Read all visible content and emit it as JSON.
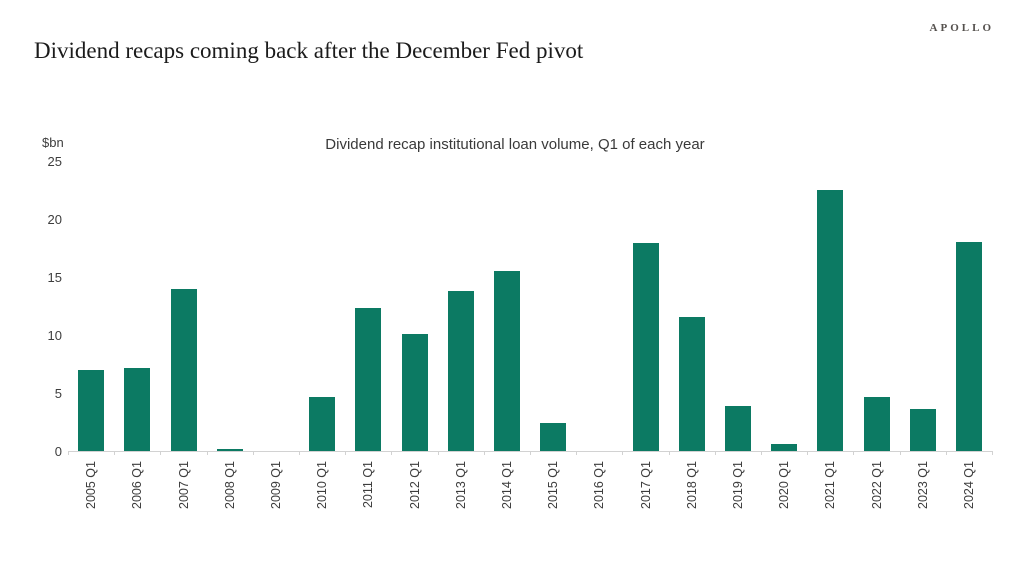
{
  "logo": "APOLLO",
  "title": "Dividend recaps coming back after the December Fed pivot",
  "chart_data": {
    "type": "bar",
    "title": "Dividend recap institutional loan volume, Q1 of each year",
    "unit_label": "$bn",
    "xlabel": "",
    "ylabel": "$bn",
    "categories": [
      "2005 Q1",
      "2006 Q1",
      "2007 Q1",
      "2008 Q1",
      "2009 Q1",
      "2010 Q1",
      "2011 Q1",
      "2012 Q1",
      "2013 Q1",
      "2014 Q1",
      "2015 Q1",
      "2016 Q1",
      "2017 Q1",
      "2018 Q1",
      "2019 Q1",
      "2020 Q1",
      "2021 Q1",
      "2022 Q1",
      "2023 Q1",
      "2024 Q1"
    ],
    "values": [
      7.0,
      7.2,
      14.0,
      0.2,
      0,
      4.7,
      12.4,
      10.1,
      13.8,
      15.6,
      2.4,
      0,
      18.0,
      11.6,
      3.9,
      0.6,
      22.6,
      4.7,
      3.6,
      18.1
    ],
    "ylim": [
      0,
      25
    ],
    "y_ticks": [
      25,
      20,
      15,
      10,
      5,
      0
    ],
    "grid": false,
    "legend_position": "none",
    "bar_color": "#0c7a63",
    "axis_line_color": "#d2d2d2"
  }
}
